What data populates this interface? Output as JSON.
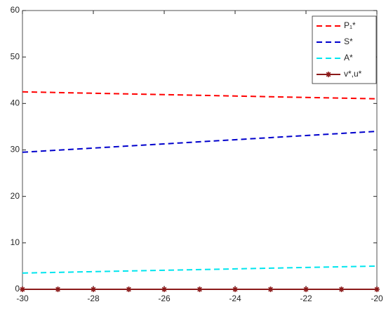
{
  "chart_data": {
    "type": "line",
    "x": [
      -30,
      -29,
      -28,
      -27,
      -26,
      -25,
      -24,
      -23,
      -22,
      -21,
      -20
    ],
    "xlim": [
      -30,
      -20
    ],
    "xticks": [
      -30,
      -28,
      -26,
      -24,
      -22,
      -20
    ],
    "ylim": [
      0,
      60
    ],
    "yticks": [
      0,
      10,
      20,
      30,
      40,
      50,
      60
    ],
    "legend": "upper right",
    "series": [
      {
        "name": "P₁*",
        "color": "#ff0000",
        "dash": true,
        "marker": false,
        "values": [
          42.5,
          42.35,
          42.2,
          42.05,
          41.9,
          41.75,
          41.6,
          41.45,
          41.3,
          41.15,
          41
        ]
      },
      {
        "name": "S*",
        "color": "#0000cc",
        "dash": true,
        "marker": false,
        "values": [
          29.5,
          29.95,
          30.4,
          30.85,
          31.3,
          31.75,
          32.2,
          32.65,
          33.1,
          33.55,
          34
        ]
      },
      {
        "name": "A*",
        "color": "#00e5ee",
        "dash": true,
        "marker": false,
        "values": [
          3.5,
          3.65,
          3.8,
          3.95,
          4.1,
          4.25,
          4.4,
          4.55,
          4.7,
          4.85,
          5
        ]
      },
      {
        "name": "v*,u*",
        "color": "#8b1a1a",
        "dash": false,
        "marker": true,
        "values": [
          0,
          0,
          0,
          0,
          0,
          0,
          0,
          0,
          0,
          0,
          0
        ]
      }
    ]
  }
}
